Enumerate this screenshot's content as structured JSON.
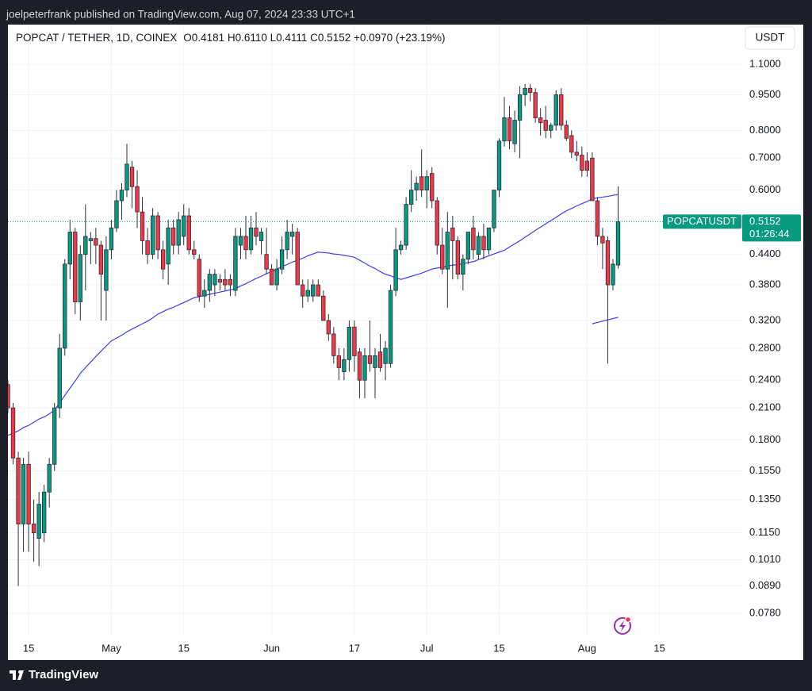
{
  "header": "joelpeterfrank published on TradingView.com, Aug 07, 2024 23:33 UTC+1",
  "footer": "TradingView",
  "chart_data": {
    "type": "candlestick",
    "title": "POPCAT / TETHER, 1D, COINEX",
    "legend_text": "O0.4181 H0.6110 L0.4111 C0.5152 +0.0970 (+23.19%)",
    "currency": "USDT",
    "symbol": "POPCATUSDT",
    "last_price": 0.5152,
    "countdown": "01:26:44",
    "up_color": "#089981",
    "down_color": "#f23645",
    "log_scale": true,
    "grid": true,
    "ylim": [
      0.0704,
      1.332
    ],
    "yticks": [
      {
        "value": 1.1,
        "label": "1.1000"
      },
      {
        "value": 0.95,
        "label": "0.9500"
      },
      {
        "value": 0.8,
        "label": "0.8000"
      },
      {
        "value": 0.7,
        "label": "0.7000"
      },
      {
        "value": 0.6,
        "label": "0.6000"
      },
      {
        "value": 0.44,
        "label": "0.4400"
      },
      {
        "value": 0.38,
        "label": "0.3800"
      },
      {
        "value": 0.32,
        "label": "0.3200"
      },
      {
        "value": 0.28,
        "label": "0.2800"
      },
      {
        "value": 0.24,
        "label": "0.2400"
      },
      {
        "value": 0.21,
        "label": "0.2100"
      },
      {
        "value": 0.18,
        "label": "0.1800"
      },
      {
        "value": 0.155,
        "label": "0.1550"
      },
      {
        "value": 0.135,
        "label": "0.1350"
      },
      {
        "value": 0.115,
        "label": "0.1150"
      },
      {
        "value": 0.101,
        "label": "0.1010"
      },
      {
        "value": 0.089,
        "label": "0.0890"
      },
      {
        "value": 0.078,
        "label": "0.0780"
      }
    ],
    "xlim": [
      "2024-04-11",
      "2024-08-31"
    ],
    "xticks": [
      {
        "value": "2024-04-15",
        "label": "15"
      },
      {
        "value": "2024-05-01",
        "label": "May"
      },
      {
        "value": "2024-05-15",
        "label": "15"
      },
      {
        "value": "2024-06-01",
        "label": "Jun"
      },
      {
        "value": "2024-06-17",
        "label": "17"
      },
      {
        "value": "2024-07-01",
        "label": "Jul"
      },
      {
        "value": "2024-07-15",
        "label": "15"
      },
      {
        "value": "2024-08-01",
        "label": "Aug"
      },
      {
        "value": "2024-08-15",
        "label": "15"
      }
    ],
    "x": [
      "2024-04-11",
      "2024-04-12",
      "2024-04-13",
      "2024-04-14",
      "2024-04-15",
      "2024-04-16",
      "2024-04-17",
      "2024-04-18",
      "2024-04-19",
      "2024-04-20",
      "2024-04-21",
      "2024-04-22",
      "2024-04-23",
      "2024-04-24",
      "2024-04-25",
      "2024-04-26",
      "2024-04-27",
      "2024-04-28",
      "2024-04-29",
      "2024-04-30",
      "2024-05-01",
      "2024-05-02",
      "2024-05-03",
      "2024-05-04",
      "2024-05-05",
      "2024-05-06",
      "2024-05-07",
      "2024-05-08",
      "2024-05-09",
      "2024-05-10",
      "2024-05-11",
      "2024-05-12",
      "2024-05-13",
      "2024-05-14",
      "2024-05-15",
      "2024-05-16",
      "2024-05-17",
      "2024-05-18",
      "2024-05-19",
      "2024-05-20",
      "2024-05-21",
      "2024-05-22",
      "2024-05-23",
      "2024-05-24",
      "2024-05-25",
      "2024-05-26",
      "2024-05-27",
      "2024-05-28",
      "2024-05-29",
      "2024-05-30",
      "2024-05-31",
      "2024-06-01",
      "2024-06-02",
      "2024-06-03",
      "2024-06-04",
      "2024-06-05",
      "2024-06-06",
      "2024-06-07",
      "2024-06-08",
      "2024-06-09",
      "2024-06-10",
      "2024-06-11",
      "2024-06-12",
      "2024-06-13",
      "2024-06-14",
      "2024-06-15",
      "2024-06-16",
      "2024-06-17",
      "2024-06-18",
      "2024-06-19",
      "2024-06-20",
      "2024-06-21",
      "2024-06-22",
      "2024-06-23",
      "2024-06-24",
      "2024-06-25",
      "2024-06-26",
      "2024-06-27",
      "2024-06-28",
      "2024-06-29",
      "2024-06-30",
      "2024-07-01",
      "2024-07-02",
      "2024-07-03",
      "2024-07-04",
      "2024-07-05",
      "2024-07-06",
      "2024-07-07",
      "2024-07-08",
      "2024-07-09",
      "2024-07-10",
      "2024-07-11",
      "2024-07-12",
      "2024-07-13",
      "2024-07-14",
      "2024-07-15",
      "2024-07-16",
      "2024-07-17",
      "2024-07-18",
      "2024-07-19",
      "2024-07-20",
      "2024-07-21",
      "2024-07-22",
      "2024-07-23",
      "2024-07-24",
      "2024-07-25",
      "2024-07-26",
      "2024-07-27",
      "2024-07-28",
      "2024-07-29",
      "2024-07-30",
      "2024-07-31",
      "2024-08-01",
      "2024-08-02",
      "2024-08-03",
      "2024-08-04",
      "2024-08-05",
      "2024-08-06",
      "2024-08-07"
    ],
    "open": [
      0.235,
      0.21,
      0.165,
      0.12,
      0.16,
      0.12,
      0.112,
      0.115,
      0.14,
      0.16,
      0.21,
      0.28,
      0.42,
      0.49,
      0.35,
      0.44,
      0.47,
      0.475,
      0.46,
      0.37,
      0.45,
      0.5,
      0.57,
      0.6,
      0.67,
      0.61,
      0.54,
      0.47,
      0.44,
      0.53,
      0.45,
      0.42,
      0.5,
      0.46,
      0.48,
      0.53,
      0.45,
      0.43,
      0.36,
      0.37,
      0.38,
      0.39,
      0.39,
      0.39,
      0.37,
      0.46,
      0.48,
      0.45,
      0.5,
      0.47,
      0.44,
      0.41,
      0.38,
      0.41,
      0.45,
      0.48,
      0.49,
      0.38,
      0.36,
      0.36,
      0.38,
      0.36,
      0.32,
      0.3,
      0.27,
      0.25,
      0.265,
      0.31,
      0.275,
      0.24,
      0.27,
      0.255,
      0.275,
      0.26,
      0.26,
      0.37,
      0.45,
      0.46,
      0.56,
      0.6,
      0.64,
      0.6,
      0.65,
      0.57,
      0.46,
      0.41,
      0.5,
      0.47,
      0.4,
      0.43,
      0.5,
      0.44,
      0.48,
      0.45,
      0.5,
      0.6,
      0.76,
      0.85,
      0.75,
      0.84,
      0.95,
      0.98,
      0.96,
      0.85,
      0.84,
      0.8,
      0.82,
      0.95,
      0.82,
      0.78,
      0.72,
      0.71,
      0.69,
      0.7,
      0.57,
      0.48,
      0.47,
      0.38,
      0.4181
    ],
    "high": [
      0.24,
      0.215,
      0.17,
      0.165,
      0.17,
      0.135,
      0.14,
      0.145,
      0.165,
      0.215,
      0.3,
      0.43,
      0.52,
      0.5,
      0.46,
      0.56,
      0.49,
      0.5,
      0.47,
      0.48,
      0.52,
      0.6,
      0.62,
      0.75,
      0.69,
      0.66,
      0.58,
      0.5,
      0.55,
      0.54,
      0.47,
      0.52,
      0.52,
      0.54,
      0.56,
      0.55,
      0.47,
      0.44,
      0.39,
      0.41,
      0.41,
      0.4,
      0.41,
      0.4,
      0.5,
      0.5,
      0.53,
      0.53,
      0.54,
      0.5,
      0.5,
      0.42,
      0.43,
      0.48,
      0.52,
      0.51,
      0.5,
      0.39,
      0.39,
      0.39,
      0.39,
      0.37,
      0.33,
      0.31,
      0.28,
      0.28,
      0.32,
      0.32,
      0.28,
      0.28,
      0.32,
      0.28,
      0.3,
      0.29,
      0.38,
      0.5,
      0.47,
      0.58,
      0.66,
      0.64,
      0.73,
      0.66,
      0.67,
      0.58,
      0.5,
      0.54,
      0.53,
      0.48,
      0.44,
      0.49,
      0.53,
      0.49,
      0.51,
      0.5,
      0.6,
      0.77,
      0.94,
      0.9,
      0.88,
      0.99,
      1.0,
      1.0,
      0.98,
      0.89,
      0.9,
      0.83,
      0.97,
      0.98,
      0.84,
      0.8,
      0.76,
      0.74,
      0.72,
      0.72,
      0.58,
      0.5,
      0.48,
      0.43,
      0.611
    ],
    "low": [
      0.205,
      0.16,
      0.089,
      0.105,
      0.105,
      0.1,
      0.098,
      0.11,
      0.13,
      0.155,
      0.2,
      0.27,
      0.39,
      0.33,
      0.32,
      0.37,
      0.42,
      0.42,
      0.32,
      0.32,
      0.43,
      0.49,
      0.52,
      0.58,
      0.55,
      0.5,
      0.44,
      0.42,
      0.43,
      0.43,
      0.39,
      0.38,
      0.44,
      0.44,
      0.46,
      0.44,
      0.43,
      0.35,
      0.34,
      0.35,
      0.36,
      0.37,
      0.37,
      0.36,
      0.36,
      0.43,
      0.43,
      0.44,
      0.46,
      0.44,
      0.4,
      0.38,
      0.37,
      0.4,
      0.43,
      0.44,
      0.38,
      0.34,
      0.35,
      0.35,
      0.36,
      0.32,
      0.29,
      0.26,
      0.24,
      0.24,
      0.25,
      0.25,
      0.22,
      0.22,
      0.25,
      0.22,
      0.25,
      0.24,
      0.255,
      0.36,
      0.44,
      0.45,
      0.54,
      0.57,
      0.58,
      0.55,
      0.55,
      0.44,
      0.4,
      0.34,
      0.39,
      0.39,
      0.37,
      0.42,
      0.43,
      0.43,
      0.43,
      0.44,
      0.49,
      0.58,
      0.74,
      0.73,
      0.72,
      0.7,
      0.9,
      0.92,
      0.83,
      0.78,
      0.77,
      0.77,
      0.8,
      0.8,
      0.76,
      0.7,
      0.69,
      0.64,
      0.64,
      0.57,
      0.46,
      0.41,
      0.26,
      0.37,
      0.4111
    ],
    "close": [
      0.21,
      0.165,
      0.12,
      0.16,
      0.12,
      0.115,
      0.132,
      0.14,
      0.16,
      0.21,
      0.28,
      0.42,
      0.49,
      0.35,
      0.44,
      0.48,
      0.475,
      0.46,
      0.4,
      0.45,
      0.5,
      0.57,
      0.6,
      0.68,
      0.61,
      0.54,
      0.47,
      0.44,
      0.53,
      0.45,
      0.41,
      0.5,
      0.46,
      0.52,
      0.53,
      0.45,
      0.44,
      0.36,
      0.37,
      0.4,
      0.4,
      0.385,
      0.38,
      0.38,
      0.48,
      0.48,
      0.45,
      0.5,
      0.48,
      0.49,
      0.41,
      0.38,
      0.41,
      0.45,
      0.49,
      0.49,
      0.38,
      0.36,
      0.37,
      0.38,
      0.36,
      0.32,
      0.3,
      0.27,
      0.255,
      0.265,
      0.31,
      0.27,
      0.24,
      0.27,
      0.26,
      0.27,
      0.255,
      0.28,
      0.37,
      0.45,
      0.46,
      0.56,
      0.6,
      0.62,
      0.6,
      0.64,
      0.57,
      0.46,
      0.41,
      0.49,
      0.47,
      0.4,
      0.43,
      0.49,
      0.45,
      0.48,
      0.45,
      0.5,
      0.6,
      0.76,
      0.85,
      0.76,
      0.84,
      0.95,
      0.98,
      0.96,
      0.85,
      0.83,
      0.8,
      0.82,
      0.95,
      0.82,
      0.77,
      0.72,
      0.71,
      0.66,
      0.66,
      0.57,
      0.48,
      0.465,
      0.38,
      0.42,
      0.5152
    ],
    "lines": [
      {
        "color": "#3d3df2",
        "values": [
          0.184,
          0.186,
          0.188,
          0.191,
          0.193,
          0.196,
          0.199,
          0.201,
          0.204,
          0.208,
          0.215,
          0.223,
          0.231,
          0.239,
          0.248,
          0.255,
          0.262,
          0.269,
          0.276,
          0.283,
          0.29,
          0.294,
          0.298,
          0.303,
          0.307,
          0.311,
          0.315,
          0.319,
          0.324,
          0.33,
          0.334,
          0.338,
          0.341,
          0.345,
          0.349,
          0.353,
          0.357,
          0.359,
          0.361,
          0.363,
          0.365,
          0.367,
          0.369,
          0.371,
          0.373,
          0.378,
          0.382,
          0.387,
          0.392,
          0.396,
          0.401,
          0.405,
          0.41,
          0.415,
          0.419,
          0.424,
          0.428,
          0.432,
          0.437,
          0.441,
          0.445,
          0.444,
          0.443,
          0.441,
          0.44,
          0.438,
          0.436,
          0.434,
          0.428,
          0.422,
          0.416,
          0.411,
          0.405,
          0.4,
          0.397,
          0.393,
          0.39,
          0.393,
          0.396,
          0.399,
          0.402,
          0.406,
          0.41,
          0.412,
          0.414,
          0.416,
          0.418,
          0.419,
          0.421,
          0.423,
          0.425,
          0.429,
          0.433,
          0.437,
          0.441,
          0.445,
          0.449,
          0.456,
          0.463,
          0.47,
          0.478,
          0.486,
          0.494,
          0.502,
          0.51,
          0.518,
          0.526,
          0.535,
          0.543,
          0.549,
          0.556,
          0.562,
          0.568,
          0.575,
          0.578,
          0.58,
          0.582,
          0.585,
          0.587
        ]
      },
      {
        "color": "#3d3df2",
        "x": [
          "2024-08-02",
          "2024-08-03",
          "2024-08-04",
          "2024-08-05",
          "2024-08-06",
          "2024-08-07"
        ],
        "values": [
          0.315,
          0.317,
          0.319,
          0.321,
          0.323,
          0.325
        ]
      }
    ]
  }
}
